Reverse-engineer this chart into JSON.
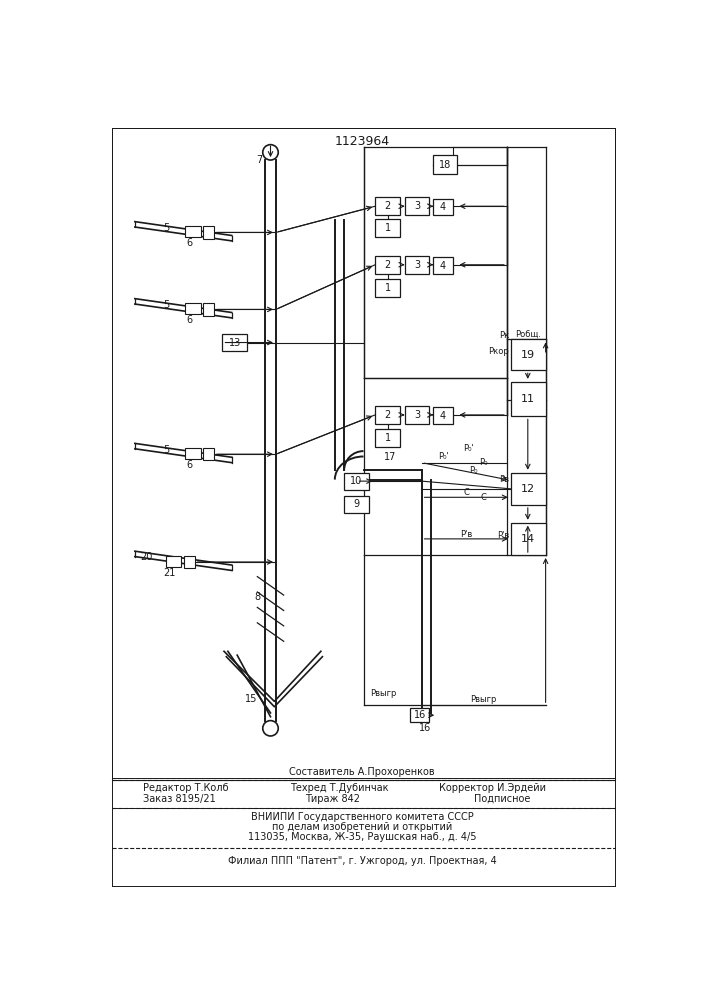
{
  "title": "1123964",
  "bg_color": "#ffffff",
  "lc": "#1a1a1a",
  "composer": "Составитель А.Прохоренков",
  "editor": "Редактор Т.Колб",
  "techred": "Техред Т.Дубинчак",
  "corrector": "Корректор И.Эрдейи",
  "order": "Заказ 8195/21",
  "tirazh": "Тираж 842",
  "podp": "Подписное",
  "vniip1": "ВНИИПИ Государственного комитета СССР",
  "vniip2": "по делам изобретений и открытий",
  "vniip3": "113035, Москва, Ж-35, Раушская наб., д. 4/5",
  "filial": "Филиал ППП \"Патент\", г. Ужгород, ул. Проектная, 4"
}
